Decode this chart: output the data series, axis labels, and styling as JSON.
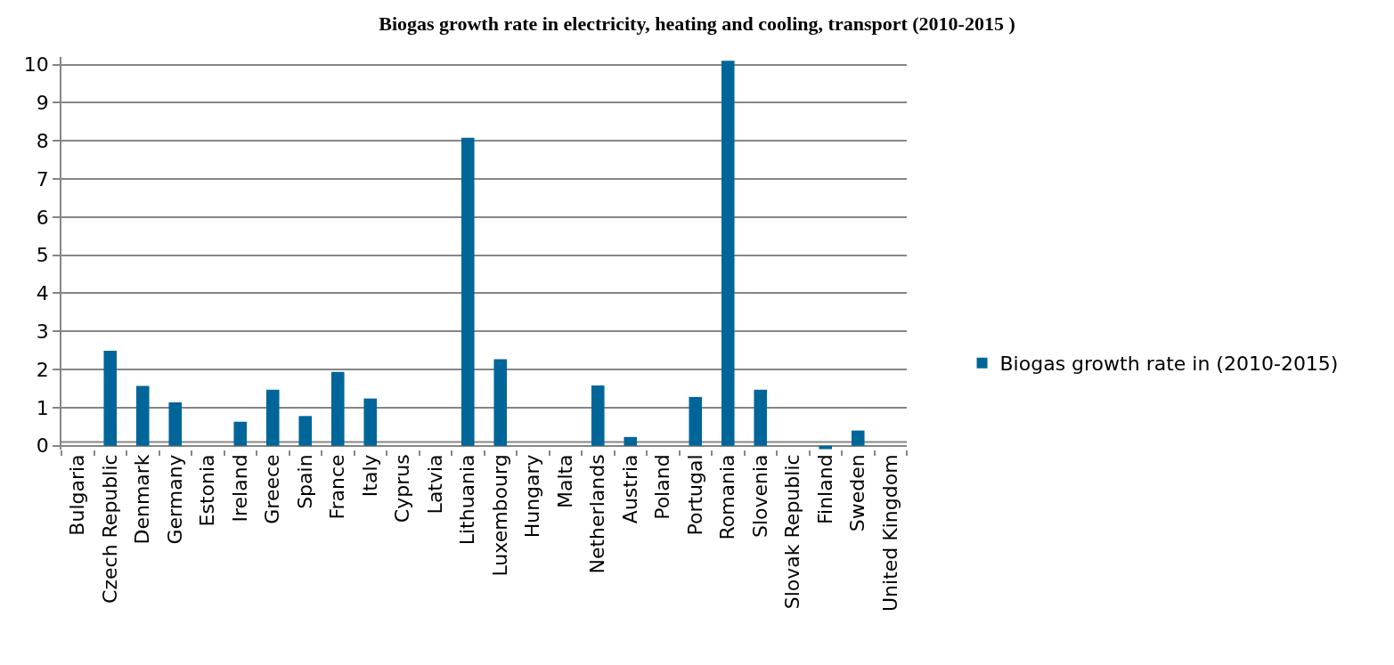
{
  "chart_data": {
    "type": "bar",
    "title": "Biogas growth rate in electricity, heating and cooling, transport (2010-2015 )",
    "categories": [
      "Bulgaria",
      "Czech Republic",
      "Denmark",
      "Germany",
      "Estonia",
      "Ireland",
      "Greece",
      "Spain",
      "France",
      "Italy",
      "Cyprus",
      "Latvia",
      "Lithuania",
      "Luxembourg",
      "Hungary",
      "Malta",
      "Netherlands",
      "Austria",
      "Poland",
      "Portugal",
      "Romania",
      "Slovenia",
      "Slovak Republic",
      "Finland",
      "Sweden",
      "United Kingdom"
    ],
    "series": [
      {
        "name": "Biogas growth rate in (2010-2015)",
        "color": "#006699",
        "values": [
          null,
          2.49,
          1.57,
          1.14,
          null,
          0.63,
          1.47,
          0.78,
          1.94,
          1.24,
          null,
          null,
          8.08,
          2.27,
          null,
          null,
          1.58,
          0.23,
          null,
          1.28,
          10.1,
          1.47,
          null,
          -0.09,
          0.4,
          0
        ]
      }
    ],
    "ylim": [
      -0.1,
      10.2
    ],
    "yticks": [
      0,
      1,
      2,
      3,
      4,
      5,
      6,
      7,
      8,
      9,
      10
    ],
    "ref_lines": [
      {
        "axis": "y",
        "value": 0.1,
        "color": "#868686"
      }
    ],
    "grid": "y",
    "legend": "right"
  }
}
